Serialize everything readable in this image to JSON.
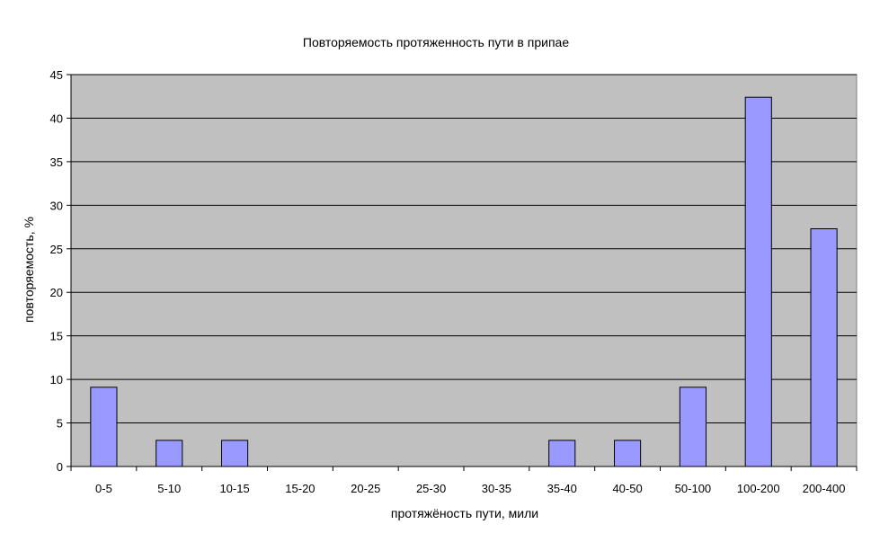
{
  "chart_data": {
    "type": "bar",
    "title": "Повторяемость протяженность пути в припае",
    "xlabel": "протяжёность пути, мили",
    "ylabel": "повторяемость, %",
    "categories": [
      "0-5",
      "5-10",
      "10-15",
      "15-20",
      "20-25",
      "25-30",
      "30-35",
      "35-40",
      "40-50",
      "50-100",
      "100-200",
      "200-400"
    ],
    "values": [
      9.1,
      3.0,
      3.0,
      0,
      0,
      0,
      0,
      3.0,
      3.0,
      9.1,
      42.4,
      27.3
    ],
    "ylim": [
      0,
      45
    ],
    "yticks": [
      0,
      5,
      10,
      15,
      20,
      25,
      30,
      35,
      40,
      45
    ],
    "grid": true,
    "colors": {
      "plot_bg": "#c0c0c0",
      "bar": "#9999ff",
      "bar_border": "#000000"
    }
  }
}
